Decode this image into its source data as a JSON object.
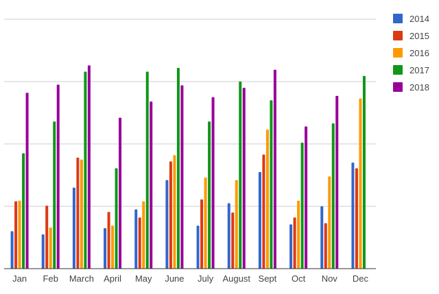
{
  "chart_data": {
    "type": "bar",
    "categories": [
      "Jan",
      "Feb",
      "March",
      "April",
      "May",
      "June",
      "July",
      "August",
      "Sept",
      "Oct",
      "Nov",
      "Dec"
    ],
    "series": [
      {
        "name": "2014",
        "color": "#3366cc",
        "values": [
          60,
          55,
          130,
          65,
          95,
          142,
          69,
          105,
          155,
          71,
          100,
          170
        ]
      },
      {
        "name": "2015",
        "color": "#dc3912",
        "values": [
          108,
          101,
          178,
          91,
          82,
          172,
          111,
          90,
          183,
          82,
          73,
          161
        ]
      },
      {
        "name": "2016",
        "color": "#ff9900",
        "values": [
          109,
          66,
          175,
          69,
          108,
          182,
          146,
          142,
          223,
          109,
          148,
          273
        ]
      },
      {
        "name": "2017",
        "color": "#109618",
        "values": [
          185,
          236,
          316,
          161,
          316,
          322,
          236,
          300,
          270,
          202,
          233,
          309
        ]
      },
      {
        "name": "2018",
        "color": "#990099",
        "values": [
          282,
          295,
          326,
          242,
          268,
          294,
          275,
          290,
          319,
          228,
          277,
          null
        ]
      }
    ],
    "ylim": [
      0,
      400
    ],
    "yticks": [
      0,
      100,
      200,
      300,
      400
    ],
    "grid": true,
    "legend_position": "right",
    "title": "",
    "xlabel": "",
    "ylabel": ""
  }
}
